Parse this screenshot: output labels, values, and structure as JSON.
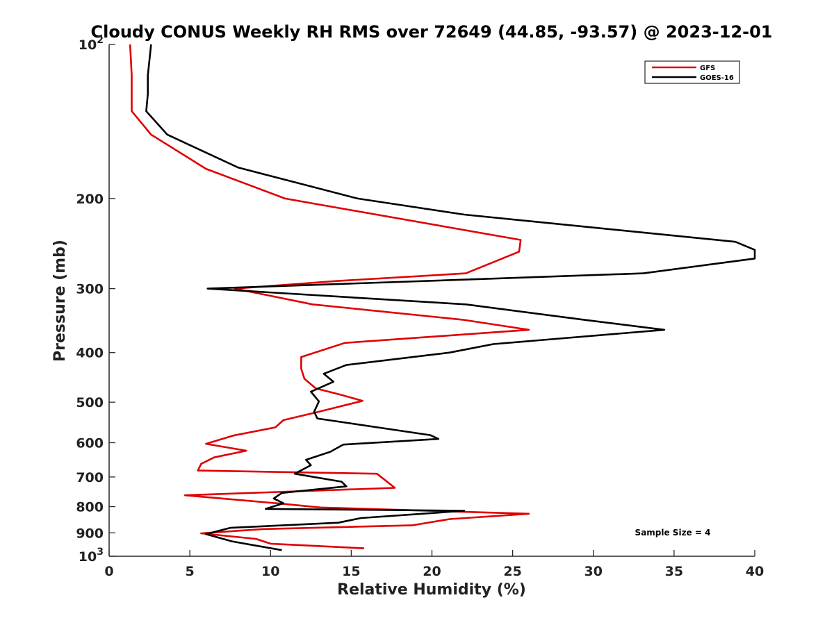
{
  "chart_data": {
    "type": "line",
    "orientation": "vertical-profile",
    "title": "Cloudy CONUS Weekly RH RMS over 72649 (44.85, -93.57) @ 2023-12-01",
    "xlabel": "Relative Humidity (%)",
    "ylabel": "Pressure (mb)",
    "xlim": [
      0,
      40
    ],
    "ylim": [
      1000,
      100
    ],
    "yscale": "log",
    "y_reversed": true,
    "x_ticks": [
      "0",
      "5",
      "10",
      "15",
      "20",
      "25",
      "30",
      "35",
      "40"
    ],
    "y_ticks": [
      {
        "value": 100,
        "base": "10",
        "exp": "2"
      },
      {
        "value": 200,
        "label": "200"
      },
      {
        "value": 300,
        "label": "300"
      },
      {
        "value": 400,
        "label": "400"
      },
      {
        "value": 500,
        "label": "500"
      },
      {
        "value": 600,
        "label": "600"
      },
      {
        "value": 700,
        "label": "700"
      },
      {
        "value": 800,
        "label": "800"
      },
      {
        "value": 900,
        "label": "900"
      },
      {
        "value": 1000,
        "base": "10",
        "exp": "3"
      }
    ],
    "grid": false,
    "legend_position": "top-right",
    "annotation": "Sample Size = 4",
    "series": [
      {
        "name": "GFS",
        "color": "#e00000",
        "points": [
          [
            1.3,
            100
          ],
          [
            1.4,
            115
          ],
          [
            1.4,
            125
          ],
          [
            1.4,
            135
          ],
          [
            2.6,
            150
          ],
          [
            6,
            175
          ],
          [
            10.9,
            200
          ],
          [
            25.5,
            241
          ],
          [
            25.4,
            254
          ],
          [
            22.1,
            280
          ],
          [
            14,
            290
          ],
          [
            7.8,
            300
          ],
          [
            12.6,
            322
          ],
          [
            21.9,
            345
          ],
          [
            26,
            361
          ],
          [
            14.6,
            383
          ],
          [
            11.9,
            408
          ],
          [
            11.9,
            430
          ],
          [
            12.1,
            450
          ],
          [
            12.8,
            470
          ],
          [
            14.3,
            483
          ],
          [
            15.7,
            497
          ],
          [
            13,
            522
          ],
          [
            10.8,
            542
          ],
          [
            10.3,
            560
          ],
          [
            7.7,
            581
          ],
          [
            6,
            603
          ],
          [
            8.5,
            622
          ],
          [
            6.5,
            641
          ],
          [
            5.7,
            660
          ],
          [
            5.5,
            680
          ],
          [
            16.6,
            690
          ],
          [
            17.7,
            735
          ],
          [
            4.7,
            760
          ],
          [
            10.8,
            790
          ],
          [
            13.1,
            803
          ],
          [
            26,
            826
          ],
          [
            21.1,
            846
          ],
          [
            18.8,
            870
          ],
          [
            9.5,
            885
          ],
          [
            5.7,
            902
          ],
          [
            9.1,
            925
          ],
          [
            10,
            945
          ],
          [
            15.8,
            965
          ]
        ]
      },
      {
        "name": "GOES-16",
        "color": "#000000",
        "points": [
          [
            2.6,
            100
          ],
          [
            2.4,
            115
          ],
          [
            2.4,
            125
          ],
          [
            2.3,
            135
          ],
          [
            3.6,
            150
          ],
          [
            8,
            174
          ],
          [
            15.4,
            200
          ],
          [
            22,
            215
          ],
          [
            38.8,
            243
          ],
          [
            40,
            252
          ],
          [
            40,
            262
          ],
          [
            33.1,
            280
          ],
          [
            6.1,
            300
          ],
          [
            22.1,
            322
          ],
          [
            29.4,
            345
          ],
          [
            34.4,
            361
          ],
          [
            23.8,
            385
          ],
          [
            21.1,
            400
          ],
          [
            14.7,
            423
          ],
          [
            13.3,
            440
          ],
          [
            13.9,
            456
          ],
          [
            12.5,
            477
          ],
          [
            13,
            498
          ],
          [
            12.7,
            522
          ],
          [
            12.9,
            538
          ],
          [
            19.9,
            580
          ],
          [
            20.4,
            590
          ],
          [
            14.5,
            605
          ],
          [
            13.7,
            625
          ],
          [
            12.2,
            648
          ],
          [
            12.5,
            664
          ],
          [
            11.5,
            690
          ],
          [
            14.4,
            715
          ],
          [
            14.7,
            730
          ],
          [
            10.7,
            752
          ],
          [
            10.2,
            771
          ],
          [
            10.8,
            788
          ],
          [
            9.7,
            808
          ],
          [
            22,
            815
          ],
          [
            15.6,
            842
          ],
          [
            14.2,
            860
          ],
          [
            7.5,
            880
          ],
          [
            6,
            905
          ],
          [
            7.6,
            935
          ],
          [
            9,
            952
          ],
          [
            10.7,
            973
          ]
        ]
      }
    ]
  }
}
